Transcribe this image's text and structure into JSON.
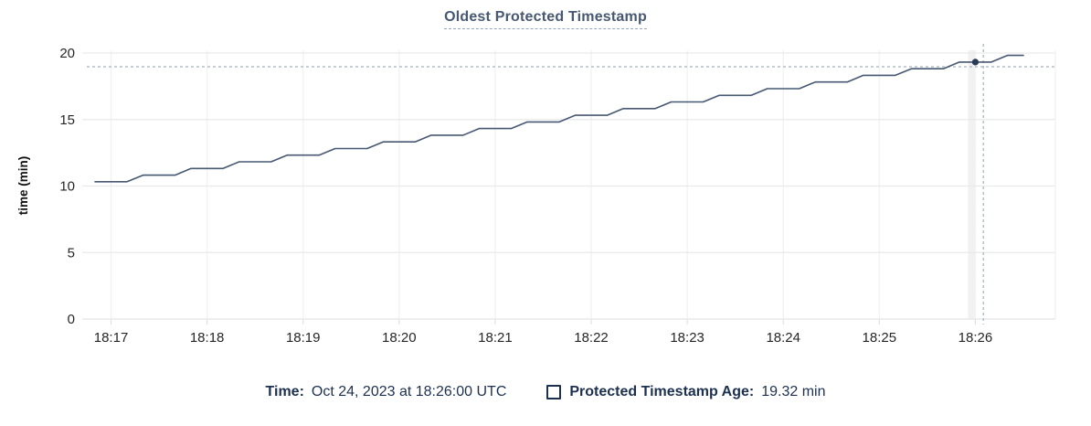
{
  "title": "Oldest Protected Timestamp",
  "tooltip_legend": {
    "time_label": "Time:",
    "time_value": "Oct 24, 2023 at 18:26:00 UTC",
    "series_label": "Protected Timestamp Age:",
    "series_value": "19.32 min"
  },
  "colors": {
    "title": "#475872",
    "line": "#475872",
    "point": "#2a3b55",
    "crosshair": "#a0b4be",
    "grid_major": "#e9e9e9",
    "grid_minor": "#f3f3f3",
    "tick_stub": "#dcdcdc",
    "hover_band": "#f1f1f1",
    "tick_text": "#262626",
    "legend_text": "#1c3150"
  },
  "chart_data": {
    "type": "line",
    "title": "Oldest Protected Timestamp",
    "xlabel": "",
    "ylabel": "time (min)",
    "ylim": [
      0,
      20
    ],
    "y_ticks": [
      0,
      5,
      10,
      15,
      20
    ],
    "x_ticks": [
      "18:17",
      "18:18",
      "18:19",
      "18:20",
      "18:21",
      "18:22",
      "18:23",
      "18:24",
      "18:25",
      "18:26"
    ],
    "x_domain": [
      "18:16:42",
      "18:26:50"
    ],
    "grid": true,
    "legend_position": "bottom",
    "series": [
      {
        "name": "Protected Timestamp Age",
        "unit": "min",
        "points": [
          [
            "18:16:50",
            10.32
          ],
          [
            "18:17:10",
            10.32
          ],
          [
            "18:17:20",
            10.82
          ],
          [
            "18:17:40",
            10.82
          ],
          [
            "18:17:50",
            11.32
          ],
          [
            "18:18:10",
            11.32
          ],
          [
            "18:18:20",
            11.82
          ],
          [
            "18:18:40",
            11.82
          ],
          [
            "18:18:50",
            12.32
          ],
          [
            "18:19:10",
            12.32
          ],
          [
            "18:19:20",
            12.82
          ],
          [
            "18:19:40",
            12.82
          ],
          [
            "18:19:50",
            13.32
          ],
          [
            "18:20:10",
            13.32
          ],
          [
            "18:20:20",
            13.82
          ],
          [
            "18:20:40",
            13.82
          ],
          [
            "18:20:50",
            14.32
          ],
          [
            "18:21:10",
            14.32
          ],
          [
            "18:21:20",
            14.82
          ],
          [
            "18:21:40",
            14.82
          ],
          [
            "18:21:50",
            15.32
          ],
          [
            "18:22:10",
            15.32
          ],
          [
            "18:22:20",
            15.82
          ],
          [
            "18:22:40",
            15.82
          ],
          [
            "18:22:50",
            16.32
          ],
          [
            "18:23:10",
            16.32
          ],
          [
            "18:23:20",
            16.82
          ],
          [
            "18:23:40",
            16.82
          ],
          [
            "18:23:50",
            17.32
          ],
          [
            "18:24:10",
            17.32
          ],
          [
            "18:24:20",
            17.82
          ],
          [
            "18:24:40",
            17.82
          ],
          [
            "18:24:50",
            18.32
          ],
          [
            "18:25:10",
            18.32
          ],
          [
            "18:25:20",
            18.82
          ],
          [
            "18:25:40",
            18.82
          ],
          [
            "18:25:50",
            19.32
          ],
          [
            "18:26:10",
            19.32
          ],
          [
            "18:26:20",
            19.82
          ],
          [
            "18:26:30",
            19.82
          ]
        ]
      }
    ],
    "highlighted_point": {
      "time": "18:26:00",
      "value": 19.32
    },
    "crosshair": {
      "time": "18:26:05",
      "value": 18.97
    }
  }
}
